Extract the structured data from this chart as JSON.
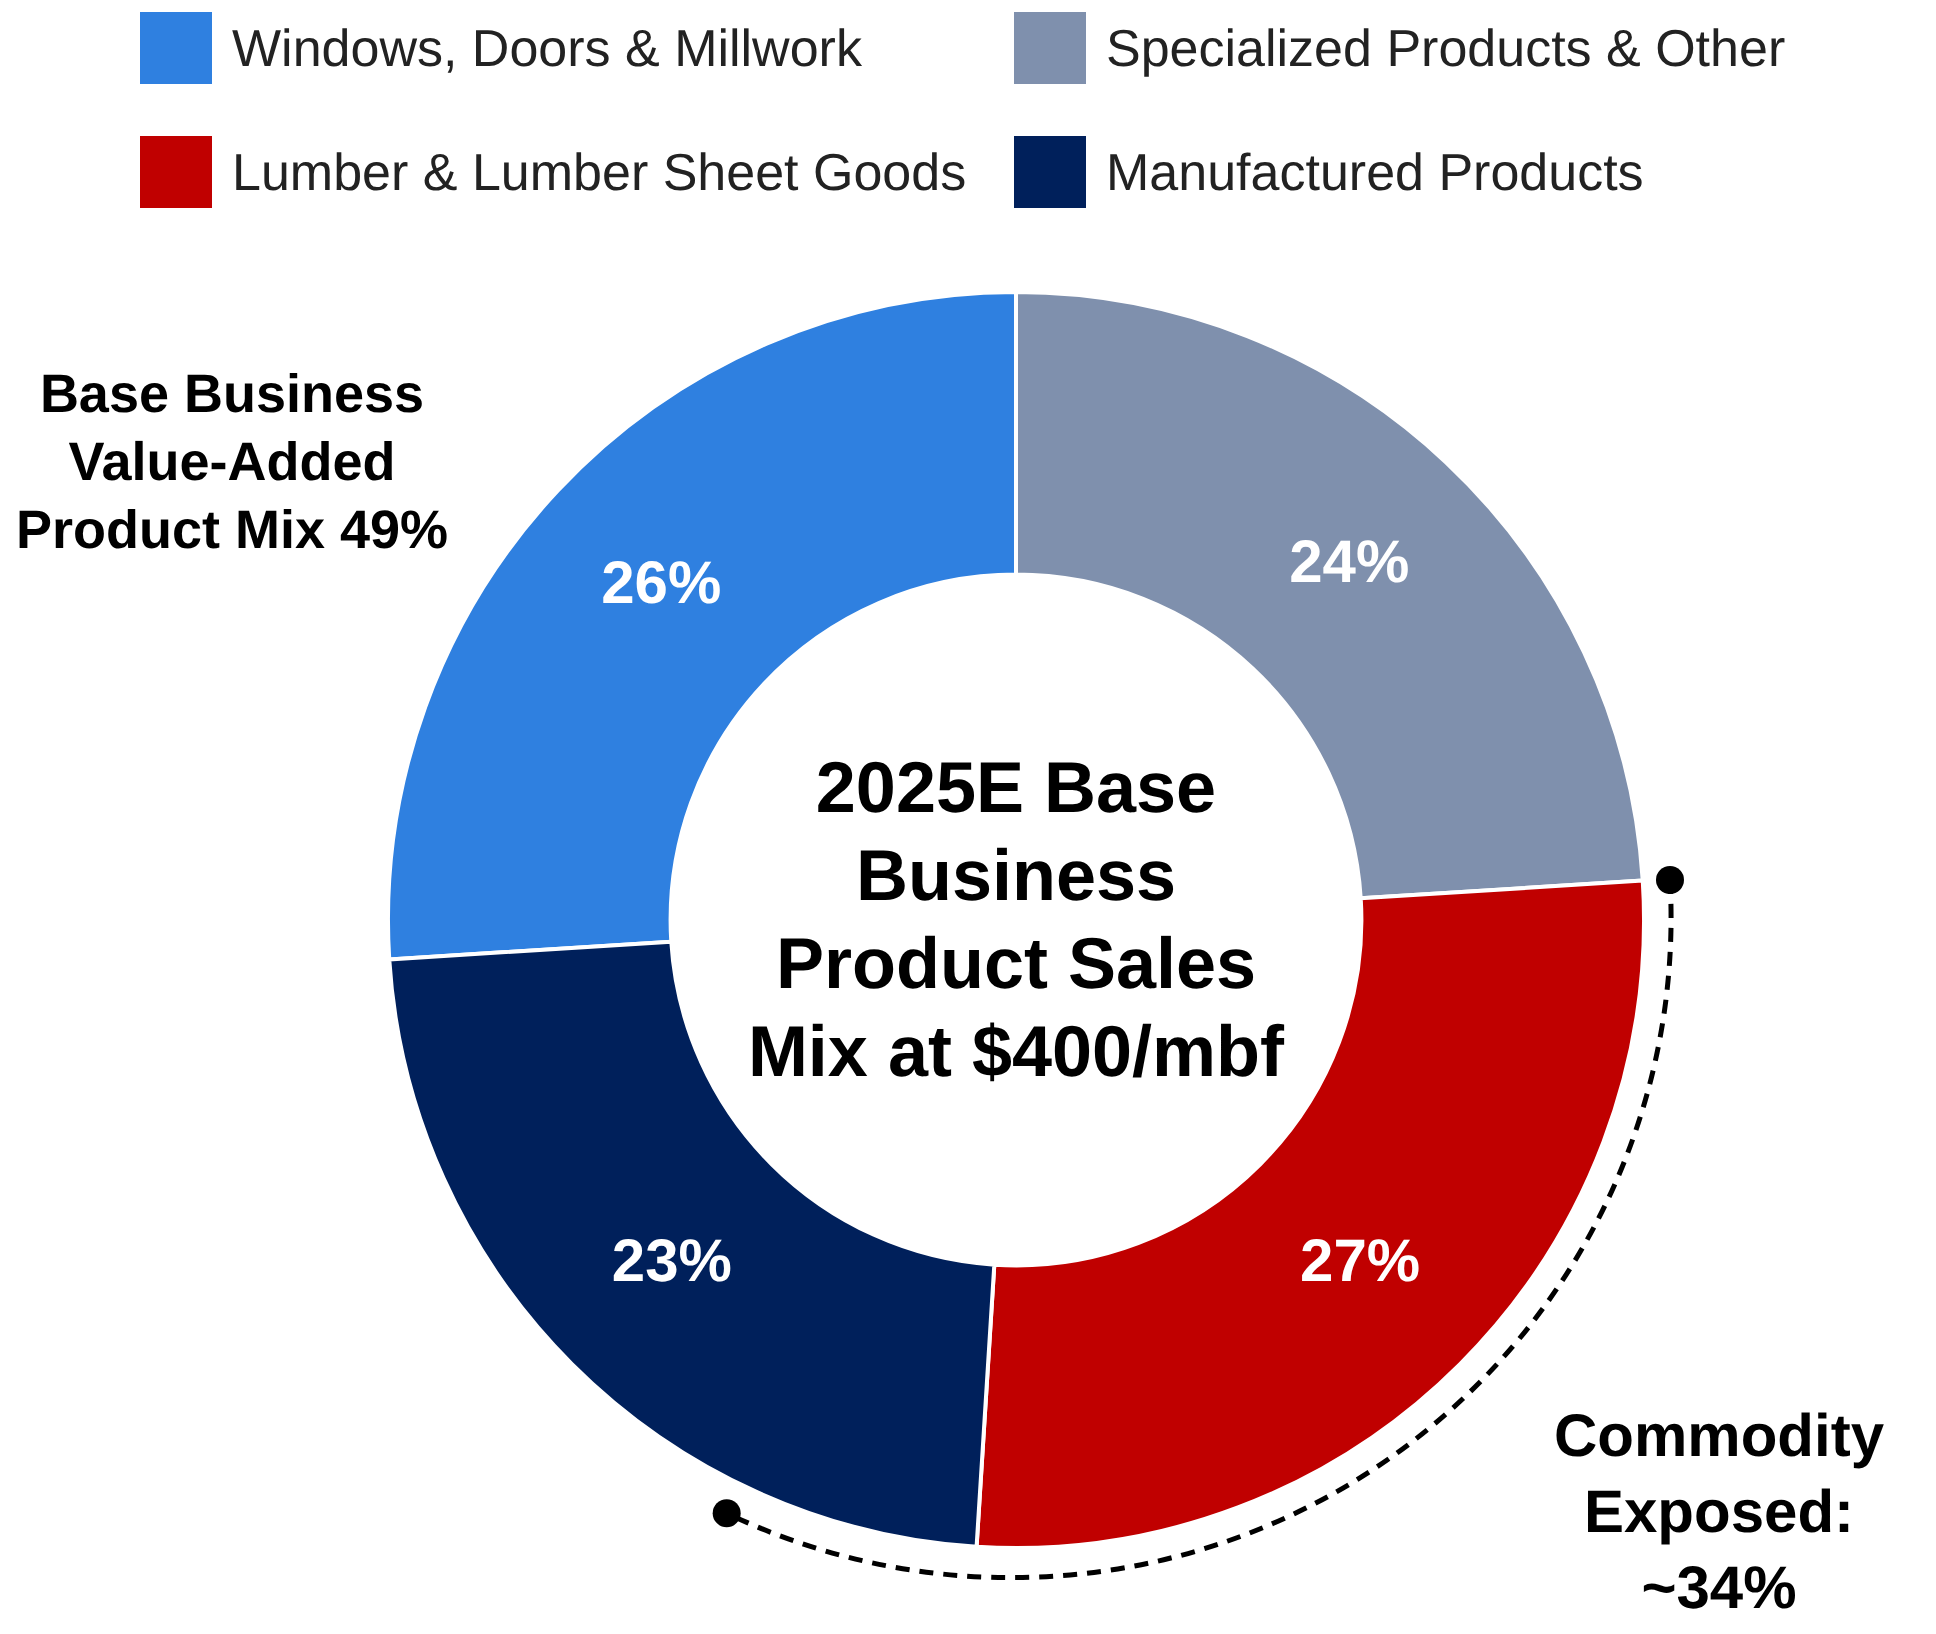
{
  "chart_data": {
    "type": "donut",
    "title": "2025E Base Business Product Sales Mix at $400/mbf",
    "categories": [
      "Windows, Doors & Millwork",
      "Specialized Products & Other",
      "Lumber & Lumber Sheet Goods",
      "Manufactured Products"
    ],
    "values": [
      26,
      24,
      27,
      23
    ],
    "colors": [
      "#2f80e0",
      "#7f90ad",
      "#c00000",
      "#00205b"
    ],
    "value_labels": [
      "26%",
      "24%",
      "27%",
      "23%"
    ],
    "legend": "top",
    "annotations": [
      "Base Business Value-Added Product Mix 49%",
      "Commodity Exposed: ~34%"
    ]
  }
}
